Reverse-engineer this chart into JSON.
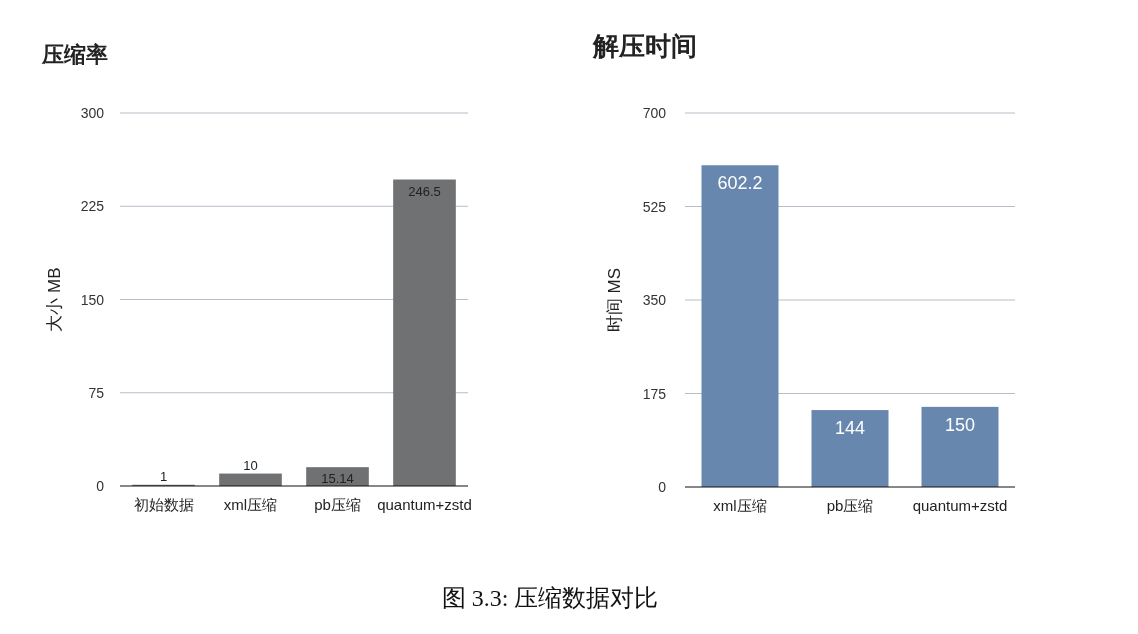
{
  "chart_data": [
    {
      "type": "bar",
      "title": "压缩率",
      "ylabel": "大小 MB",
      "categories": [
        "初始数据",
        "xml压缩",
        "pb压缩",
        "quantum+zstd"
      ],
      "values": [
        1,
        10,
        15.14,
        246.5
      ],
      "color": "#6f7173",
      "ylim": [
        0,
        300
      ],
      "yticks": [
        0,
        75,
        150,
        225,
        300
      ],
      "grid": "y",
      "data_labels": true
    },
    {
      "type": "bar",
      "title": "解压时间",
      "ylabel": "时间  MS",
      "categories": [
        "xml压缩",
        "pb压缩",
        "quantum+zstd"
      ],
      "values": [
        602.2,
        144,
        150
      ],
      "color": "#6787ae",
      "ylim": [
        0,
        700
      ],
      "yticks": [
        0,
        175,
        350,
        525,
        700
      ],
      "grid": "y",
      "data_labels": true,
      "annotations": [
        "图 3.3: 压缩数据对比"
      ]
    }
  ]
}
